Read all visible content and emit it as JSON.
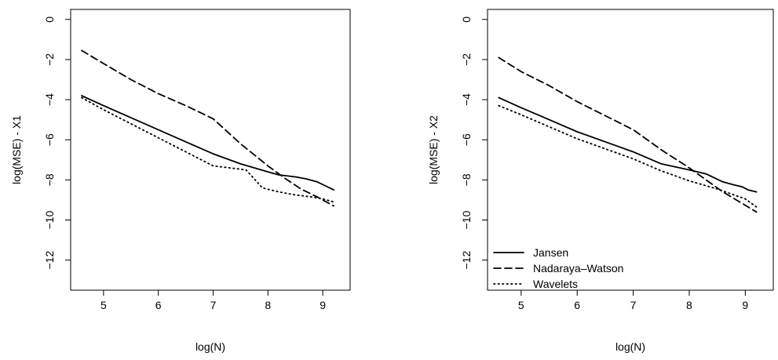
{
  "chart_data": [
    {
      "type": "line",
      "xlabel": "log(N)",
      "ylabel": "log(MSE) - X1",
      "xlim": [
        4.4,
        9.5
      ],
      "ylim": [
        -13.5,
        0.5
      ],
      "xticks": [
        5,
        6,
        7,
        8,
        9
      ],
      "yticks": [
        0,
        -2,
        -4,
        -6,
        -8,
        -10,
        -12
      ],
      "grid": false,
      "series": [
        {
          "style": "solid",
          "x": [
            4.6,
            5.0,
            5.5,
            6.0,
            6.5,
            7.0,
            7.5,
            8.0,
            8.2,
            8.5,
            8.7,
            8.9,
            9.05,
            9.2
          ],
          "y": [
            -3.8,
            -4.3,
            -4.9,
            -5.5,
            -6.1,
            -6.7,
            -7.2,
            -7.6,
            -7.75,
            -7.85,
            -7.95,
            -8.1,
            -8.3,
            -8.5
          ]
        },
        {
          "style": "dashed",
          "x": [
            4.6,
            5.0,
            5.5,
            6.0,
            6.5,
            7.0,
            7.5,
            8.0,
            8.3,
            8.6,
            8.9,
            9.2
          ],
          "y": [
            -1.55,
            -2.2,
            -3.0,
            -3.7,
            -4.3,
            -4.95,
            -6.2,
            -7.3,
            -7.9,
            -8.45,
            -8.85,
            -9.3
          ]
        },
        {
          "style": "dotted",
          "x": [
            4.6,
            5.0,
            5.5,
            6.0,
            6.5,
            7.0,
            7.3,
            7.6,
            7.9,
            8.2,
            8.5,
            8.8,
            9.0,
            9.2
          ],
          "y": [
            -3.9,
            -4.5,
            -5.2,
            -5.9,
            -6.6,
            -7.3,
            -7.4,
            -7.5,
            -8.4,
            -8.6,
            -8.75,
            -8.85,
            -8.95,
            -9.1
          ]
        }
      ]
    },
    {
      "type": "line",
      "xlabel": "log(N)",
      "ylabel": "log(MSE) - X2",
      "xlim": [
        4.4,
        9.5
      ],
      "ylim": [
        -13.5,
        0.5
      ],
      "xticks": [
        5,
        6,
        7,
        8,
        9
      ],
      "yticks": [
        0,
        -2,
        -4,
        -6,
        -8,
        -10,
        -12
      ],
      "grid": false,
      "legend_position": "bottom-left",
      "series": [
        {
          "name": "Jansen",
          "style": "solid",
          "x": [
            4.6,
            5.0,
            5.5,
            6.0,
            6.5,
            7.0,
            7.5,
            8.0,
            8.3,
            8.6,
            8.8,
            8.95,
            9.05,
            9.2
          ],
          "y": [
            -3.9,
            -4.4,
            -5.0,
            -5.6,
            -6.1,
            -6.6,
            -7.2,
            -7.5,
            -7.7,
            -8.1,
            -8.25,
            -8.35,
            -8.5,
            -8.6
          ]
        },
        {
          "name": "Nadaraya–Watson",
          "style": "dashed",
          "x": [
            4.6,
            5.0,
            5.5,
            6.0,
            6.5,
            7.0,
            7.5,
            8.0,
            8.3,
            8.6,
            8.9,
            9.2
          ],
          "y": [
            -1.9,
            -2.6,
            -3.3,
            -4.1,
            -4.8,
            -5.5,
            -6.5,
            -7.4,
            -8.0,
            -8.6,
            -9.1,
            -9.6
          ]
        },
        {
          "name": "Wavelets",
          "style": "dotted",
          "x": [
            4.6,
            5.0,
            5.5,
            6.0,
            6.5,
            7.0,
            7.5,
            8.0,
            8.5,
            9.0,
            9.2
          ],
          "y": [
            -4.3,
            -4.75,
            -5.35,
            -5.95,
            -6.45,
            -6.95,
            -7.55,
            -8.05,
            -8.45,
            -8.95,
            -9.35
          ]
        }
      ]
    }
  ]
}
